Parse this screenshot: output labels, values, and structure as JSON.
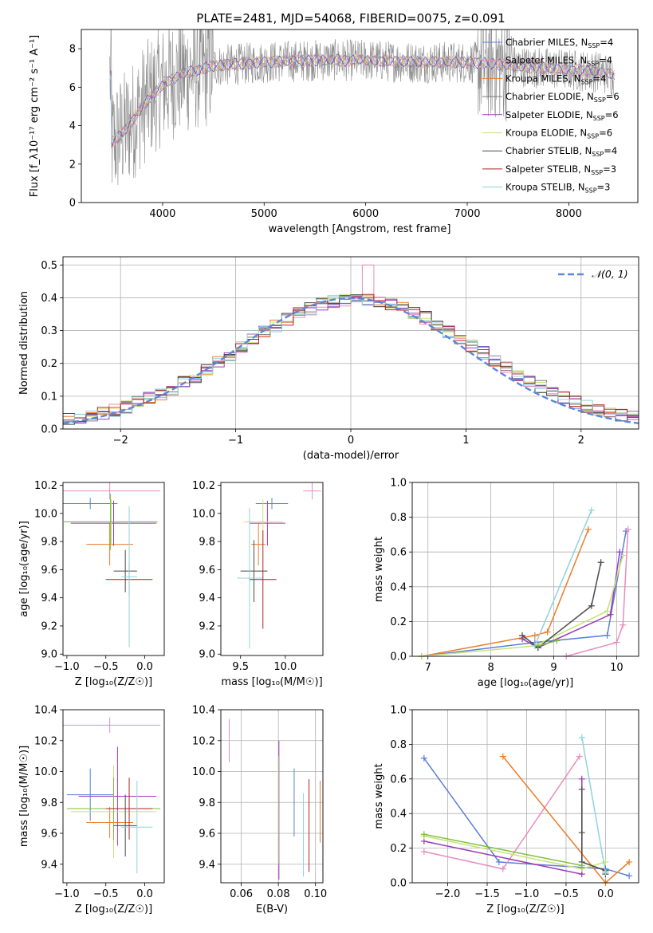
{
  "title": "PLATE=2481, MJD=54068, FIBERID=0075, z=0.091",
  "colors": {
    "chab_miles": "#5b7fd6",
    "salp_miles": "#e98bc0",
    "krou_miles": "#e87d2a",
    "chab_elodie": "#7a7a7a",
    "salp_elodie": "#9a3bb8",
    "krou_elodie": "#c8e27a",
    "chab_stelib": "#4a4a4a",
    "salp_stelib": "#b22222",
    "krou_stelib": "#8fd3dc",
    "data": "#8a8a8a",
    "normal": "#5a87d6",
    "green": "#7cbf3a"
  },
  "chart_data": [
    {
      "id": "spectrum",
      "type": "line",
      "title": "PLATE=2481, MJD=54068, FIBERID=0075, z=0.091",
      "xlabel": "wavelength [Angstrom, rest frame]",
      "ylabel": "Flux [f_λ10⁻¹⁷ erg cm⁻² s⁻¹ A⁻¹]",
      "xlim": [
        3200,
        8680
      ],
      "ylim": [
        0,
        9
      ],
      "xticks": [
        4000,
        5000,
        6000,
        7000,
        8000
      ],
      "yticks": [
        0,
        2,
        4,
        6,
        8
      ],
      "legend_position": "top-right",
      "legend": [
        {
          "main": "Chabrier MILES, N",
          "sub": "SSP",
          "tail": "=4",
          "color": "chab_miles"
        },
        {
          "main": "Salpeter MILES, N",
          "sub": "SSP",
          "tail": "=4",
          "color": "salp_miles"
        },
        {
          "main": "Kroupa MILES, N",
          "sub": "SSP",
          "tail": "=4",
          "color": "krou_miles"
        },
        {
          "main": "Chabrier ELODIE, N",
          "sub": "SSP",
          "tail": "=6",
          "color": "chab_elodie"
        },
        {
          "main": "Salpeter ELODIE, N",
          "sub": "SSP",
          "tail": "=6",
          "color": "salp_elodie"
        },
        {
          "main": "Kroupa ELODIE, N",
          "sub": "SSP",
          "tail": "=6",
          "color": "krou_elodie"
        },
        {
          "main": "Chabrier STELIB, N",
          "sub": "SSP",
          "tail": "=4",
          "color": "chab_stelib"
        },
        {
          "main": "Salpeter STELIB, N",
          "sub": "SSP",
          "tail": "=3",
          "color": "salp_stelib"
        },
        {
          "main": "Kroupa STELIB, N",
          "sub": "SSP",
          "tail": "=3",
          "color": "krou_stelib"
        }
      ],
      "continuum": [
        [
          3500,
          3.1
        ],
        [
          3600,
          3.6
        ],
        [
          3700,
          4.2
        ],
        [
          3800,
          5.0
        ],
        [
          3900,
          5.6
        ],
        [
          4000,
          6.1
        ],
        [
          4200,
          6.7
        ],
        [
          4500,
          7.1
        ],
        [
          5000,
          7.3
        ],
        [
          5500,
          7.4
        ],
        [
          6000,
          7.4
        ],
        [
          6500,
          7.3
        ],
        [
          7000,
          7.3
        ],
        [
          7300,
          7.2
        ],
        [
          7500,
          7.1
        ],
        [
          8000,
          6.9
        ],
        [
          8300,
          6.8
        ],
        [
          8450,
          6.6
        ]
      ]
    },
    {
      "id": "residuals",
      "type": "line",
      "xlabel": "(data-model)/error",
      "ylabel": "Normed distribution",
      "xlim": [
        -2.5,
        2.5
      ],
      "ylim": [
        0,
        0.525
      ],
      "xticks": [
        -2,
        -1,
        0,
        1,
        2
      ],
      "xticklabels": [
        "−2",
        "−1",
        "0",
        "1",
        "2"
      ],
      "yticks": [
        0.0,
        0.1,
        0.2,
        0.3,
        0.4,
        0.5
      ],
      "yticklabels": [
        "0.0",
        "0.1",
        "0.2",
        "0.3",
        "0.4",
        "0.5"
      ],
      "legend_label": "𝒩(0, 1)",
      "legend_position": "top-right",
      "grid": true
    },
    {
      "id": "age_vs_Z",
      "type": "scatter",
      "xlabel": "Z [log₁₀(Z/Z☉)]",
      "ylabel": "age  [log₁₀(age/yr)]",
      "xlim": [
        -1.05,
        0.25
      ],
      "ylim": [
        8.99,
        10.22
      ],
      "xticks": [
        -1.0,
        -0.5,
        0.0
      ],
      "xticklabels": [
        "−1.0",
        "−0.5",
        "0.0"
      ],
      "yticks": [
        9.0,
        9.2,
        9.4,
        9.6,
        9.8,
        10.0,
        10.2
      ],
      "yticklabels": [
        "9.0",
        "9.2",
        "9.4",
        "9.6",
        "9.8",
        "10.0",
        "10.2"
      ],
      "points": [
        {
          "c": "chab_miles",
          "x": -0.7,
          "xe": 0.35,
          "y": 10.07,
          "ye": 0.04
        },
        {
          "c": "salp_miles",
          "x": -0.45,
          "xe": 0.65,
          "y": 10.16,
          "ye": 0.06
        },
        {
          "c": "krou_miles",
          "x": -0.45,
          "xe": 0.3,
          "y": 9.78,
          "ye": 0.15
        },
        {
          "c": "salp_elodie",
          "x": -0.4,
          "xe": 0.55,
          "y": 9.93,
          "ye": 0.16
        },
        {
          "c": "krou_elodie",
          "x": -0.43,
          "xe": 0.6,
          "y": 9.94,
          "ye": 0.16
        },
        {
          "c": "green",
          "x": -0.44,
          "xe": 0.6,
          "y": 9.94,
          "ye": 0.2
        },
        {
          "c": "chab_stelib",
          "x": -0.25,
          "xe": 0.15,
          "y": 9.59,
          "ye": 0.15
        },
        {
          "c": "salp_stelib",
          "x": -0.2,
          "xe": 0.3,
          "y": 9.53,
          "ye": 0.12
        },
        {
          "c": "krou_stelib",
          "x": -0.2,
          "xe": 0.1,
          "y": 9.55,
          "ye": 0.5
        }
      ]
    },
    {
      "id": "age_vs_mass",
      "type": "scatter",
      "xlabel": "mass [log₁₀(M/M☉)]",
      "ylabel": "",
      "xlim": [
        9.28,
        10.42
      ],
      "ylim": [
        8.99,
        10.22
      ],
      "xticks": [
        9.5,
        10.0
      ],
      "xticklabels": [
        "9.5",
        "10.0"
      ],
      "yticks": [
        9.0,
        9.2,
        9.4,
        9.6,
        9.8,
        10.0,
        10.2
      ],
      "yticklabels": [
        "9.0",
        "9.2",
        "9.4",
        "9.6",
        "9.8",
        "10.0",
        "10.2"
      ],
      "points": [
        {
          "c": "chab_miles",
          "x": 9.85,
          "xe": 0.18,
          "y": 10.07,
          "ye": 0.04
        },
        {
          "c": "salp_miles",
          "x": 10.3,
          "xe": 0.1,
          "y": 10.16,
          "ye": 0.06
        },
        {
          "c": "krou_miles",
          "x": 9.7,
          "xe": 0.08,
          "y": 9.78,
          "ye": 0.15
        },
        {
          "c": "salp_elodie",
          "x": 9.8,
          "xe": 0.2,
          "y": 9.93,
          "ye": 0.16
        },
        {
          "c": "krou_elodie",
          "x": 9.75,
          "xe": 0.22,
          "y": 9.94,
          "ye": 0.16
        },
        {
          "c": "chab_stelib",
          "x": 9.65,
          "xe": 0.15,
          "y": 9.59,
          "ye": 0.22
        },
        {
          "c": "salp_stelib",
          "x": 9.75,
          "xe": 0.15,
          "y": 9.53,
          "ye": 0.35
        },
        {
          "c": "krou_stelib",
          "x": 9.6,
          "xe": 0.14,
          "y": 9.54,
          "ye": 0.5
        }
      ]
    },
    {
      "id": "mass_weight_vs_age",
      "type": "line",
      "xlabel": "age  [log₁₀(age/yr)]",
      "ylabel": "mass weight",
      "xlim": [
        6.75,
        10.35
      ],
      "ylim": [
        0,
        1.0
      ],
      "xticks": [
        7,
        8,
        9,
        10
      ],
      "yticks": [
        0.0,
        0.2,
        0.4,
        0.6,
        0.8,
        1.0
      ],
      "yticklabels": [
        "0.0",
        "0.2",
        "0.4",
        "0.6",
        "0.8",
        "1.0"
      ],
      "grid": true,
      "series": [
        {
          "c": "chab_miles",
          "x": [
            6.9,
            8.7,
            9.85,
            10.15
          ],
          "y": [
            0.0,
            0.08,
            0.12,
            0.72
          ]
        },
        {
          "c": "salp_miles",
          "x": [
            9.2,
            10.0,
            10.1,
            10.18
          ],
          "y": [
            0.0,
            0.08,
            0.18,
            0.73
          ]
        },
        {
          "c": "krou_miles",
          "x": [
            6.9,
            8.7,
            8.9,
            9.55
          ],
          "y": [
            0.0,
            0.12,
            0.14,
            0.73
          ]
        },
        {
          "c": "salp_elodie",
          "x": [
            8.5,
            8.75,
            9.9,
            10.05
          ],
          "y": [
            0.1,
            0.05,
            0.24,
            0.6
          ]
        },
        {
          "c": "krou_elodie",
          "x": [
            6.9,
            8.7,
            9.85,
            10.1
          ],
          "y": [
            0.0,
            0.06,
            0.26,
            0.58
          ]
        },
        {
          "c": "chab_stelib",
          "x": [
            8.5,
            8.75,
            9.6,
            9.75
          ],
          "y": [
            0.12,
            0.05,
            0.29,
            0.54
          ]
        },
        {
          "c": "krou_stelib",
          "x": [
            8.7,
            9.6
          ],
          "y": [
            0.06,
            0.84
          ]
        },
        {
          "c": "green",
          "x": [
            8.75,
            9.05
          ],
          "y": [
            0.06,
            0.09
          ]
        }
      ]
    },
    {
      "id": "mass_vs_Z",
      "type": "scatter",
      "xlabel": "Z [log₁₀(Z/Z☉)]",
      "ylabel": "mass [log₁₀(M/M☉)]",
      "xlim": [
        -1.05,
        0.25
      ],
      "ylim": [
        9.28,
        10.4
      ],
      "xticks": [
        -1.0,
        -0.5,
        0.0
      ],
      "xticklabels": [
        "−1.0",
        "−0.5",
        "0.0"
      ],
      "yticks": [
        9.4,
        9.6,
        9.8,
        10.0,
        10.2,
        10.4
      ],
      "yticklabels": [
        "9.4",
        "9.6",
        "9.8",
        "10.0",
        "10.2",
        "10.4"
      ],
      "points": [
        {
          "c": "chab_miles",
          "x": -0.7,
          "xe": 0.3,
          "y": 9.85,
          "ye": 0.17
        },
        {
          "c": "salp_miles",
          "x": -0.45,
          "xe": 0.65,
          "y": 10.3,
          "ye": 0.05
        },
        {
          "c": "krou_miles",
          "x": -0.45,
          "xe": 0.3,
          "y": 9.67,
          "ye": 0.1
        },
        {
          "c": "salp_elodie",
          "x": -0.35,
          "xe": 0.5,
          "y": 9.84,
          "ye": 0.32
        },
        {
          "c": "krou_elodie",
          "x": -0.4,
          "xe": 0.55,
          "y": 9.74,
          "ye": 0.3
        },
        {
          "c": "green",
          "x": -0.4,
          "xe": 0.6,
          "y": 9.76,
          "ye": 0.2
        },
        {
          "c": "chab_stelib",
          "x": -0.25,
          "xe": 0.15,
          "y": 9.65,
          "ye": 0.2
        },
        {
          "c": "salp_stelib",
          "x": -0.2,
          "xe": 0.3,
          "y": 9.76,
          "ye": 0.2
        },
        {
          "c": "krou_stelib",
          "x": -0.1,
          "xe": 0.2,
          "y": 9.64,
          "ye": 0.3
        }
      ]
    },
    {
      "id": "mass_vs_ebv",
      "type": "scatter",
      "xlabel": "E(B-V)",
      "ylabel": "",
      "xlim": [
        0.049,
        0.104
      ],
      "ylim": [
        9.28,
        10.4
      ],
      "xticks": [
        0.06,
        0.08,
        0.1
      ],
      "xticklabels": [
        "0.06",
        "0.08",
        "0.10"
      ],
      "yticks": [
        9.4,
        9.6,
        9.8,
        10.0,
        10.2,
        10.4
      ],
      "yticklabels": [
        "9.4",
        "9.6",
        "9.8",
        "10.0",
        "10.2",
        "10.4"
      ],
      "grid": true,
      "points": [
        {
          "c": "salp_miles",
          "x": 0.0535,
          "ye": 0.14,
          "y": 10.2
        },
        {
          "c": "salp_elodie",
          "x": 0.0803,
          "ye": 0.45,
          "y": 9.75
        },
        {
          "c": "krou_elodie",
          "x": 0.08,
          "ye": 0.35,
          "y": 9.75
        },
        {
          "c": "chab_miles",
          "x": 0.0885,
          "ye": 0.22,
          "y": 9.8
        },
        {
          "c": "krou_stelib",
          "x": 0.0935,
          "ye": 0.27,
          "y": 9.59
        },
        {
          "c": "salp_stelib",
          "x": 0.0965,
          "ye": 0.3,
          "y": 9.65
        },
        {
          "c": "krou_miles",
          "x": 0.1025,
          "ye": 0.2,
          "y": 9.74
        }
      ]
    },
    {
      "id": "mass_weight_vs_Z",
      "type": "line",
      "xlabel": "Z [log₁₀(Z/Z☉)]",
      "ylabel": "mass weight",
      "xlim": [
        -2.45,
        0.42
      ],
      "ylim": [
        0,
        1.0
      ],
      "xticks": [
        -2.0,
        -1.5,
        -1.0,
        -0.5,
        0.0
      ],
      "xticklabels": [
        "−2.0",
        "−1.5",
        "−1.0",
        "−0.5",
        "0.0"
      ],
      "yticks": [
        0.0,
        0.2,
        0.4,
        0.6,
        0.8,
        1.0
      ],
      "yticklabels": [
        "0.0",
        "0.2",
        "0.4",
        "0.6",
        "0.8",
        "1.0"
      ],
      "grid": true,
      "series": [
        {
          "c": "chab_miles",
          "x": [
            -2.3,
            -1.35,
            0.0,
            0.3
          ],
          "y": [
            0.72,
            0.12,
            0.08,
            0.04
          ]
        },
        {
          "c": "salp_miles",
          "x": [
            -2.3,
            -1.3,
            -0.33
          ],
          "y": [
            0.18,
            0.08,
            0.73
          ]
        },
        {
          "c": "krou_miles",
          "x": [
            -1.3,
            0.0,
            0.3
          ],
          "y": [
            0.73,
            0.0,
            0.12
          ]
        },
        {
          "c": "salp_elodie",
          "x": [
            -2.3,
            -0.3,
            -0.3
          ],
          "y": [
            0.24,
            0.05,
            0.6
          ]
        },
        {
          "c": "krou_elodie",
          "x": [
            -2.3,
            -0.3,
            0.0
          ],
          "y": [
            0.27,
            0.08,
            0.12
          ]
        },
        {
          "c": "chab_stelib",
          "x": [
            -0.3,
            -0.3,
            -0.3,
            0.0,
            0.0
          ],
          "y": [
            0.54,
            0.29,
            0.12,
            0.07,
            0.05
          ]
        },
        {
          "c": "krou_stelib",
          "x": [
            -0.3,
            0.0
          ],
          "y": [
            0.84,
            0.06
          ]
        },
        {
          "c": "green",
          "x": [
            -2.3,
            -0.3
          ],
          "y": [
            0.28,
            0.1
          ]
        }
      ]
    }
  ]
}
